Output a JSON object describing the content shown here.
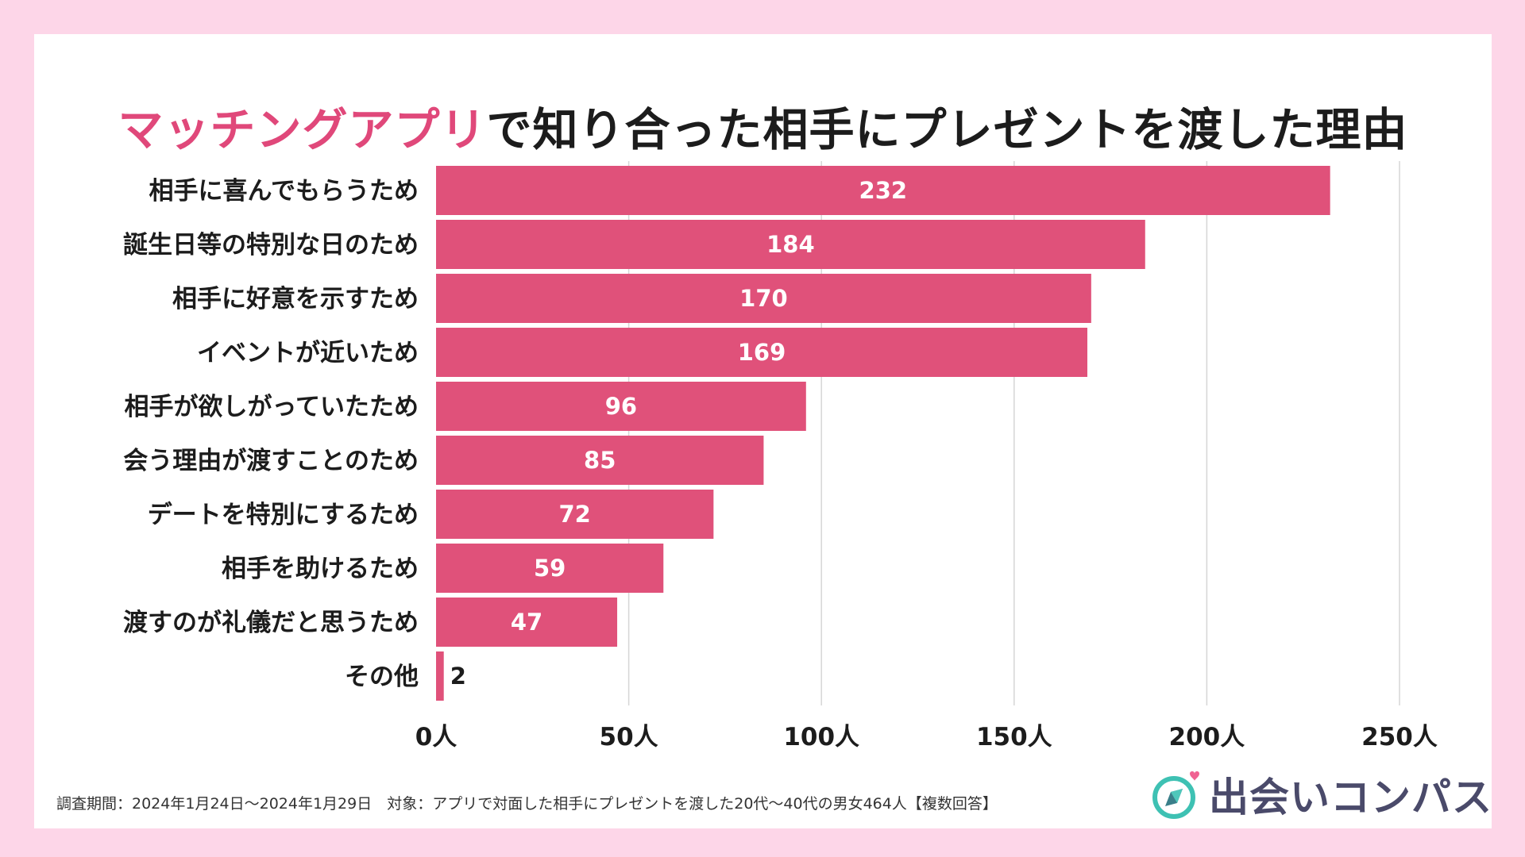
{
  "title": {
    "highlight": "マッチングアプリ",
    "rest": "で知り合った相手にプレゼントを渡した理由"
  },
  "footer": {
    "note": "調査期間：2024年1月24日〜2024年1月29日　対象：アプリで対面した相手にプレゼントを渡した20代〜40代の男女464人【複数回答】"
  },
  "logo": {
    "text": "出会いコンパス",
    "icon": "compass-heart-icon"
  },
  "colors": {
    "bar": "#e0517a",
    "highlight": "#e0487a",
    "background": "#fdd6e8",
    "grid": "#d6d6d6"
  },
  "chart_data": {
    "type": "bar",
    "orientation": "horizontal",
    "categories": [
      "相手に喜んでもらうため",
      "誕生日等の特別な日のため",
      "相手に好意を示すため",
      "イベントが近いため",
      "相手が欲しがっていたため",
      "会う理由が渡すことのため",
      "デートを特別にするため",
      "相手を助けるため",
      "渡すのが礼儀だと思うため",
      "その他"
    ],
    "values": [
      232,
      184,
      170,
      169,
      96,
      85,
      72,
      59,
      47,
      2
    ],
    "xlim": [
      0,
      250
    ],
    "ticks": [
      0,
      50,
      100,
      150,
      200,
      250
    ],
    "tick_labels": [
      "0人",
      "50人",
      "100人",
      "150人",
      "200人",
      "250人"
    ],
    "grid": true,
    "data_labels": true
  }
}
